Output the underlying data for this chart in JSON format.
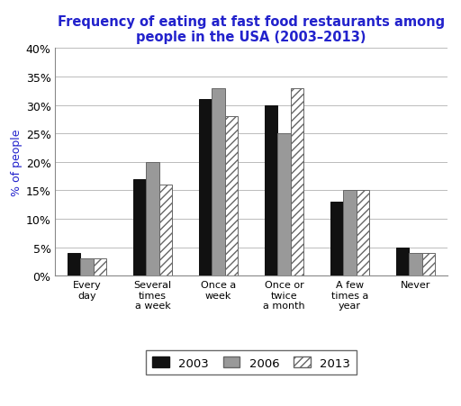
{
  "title": "Frequency of eating at fast food restaurants among\npeople in the USA (2003–2013)",
  "ylabel": "% of people",
  "categories": [
    "Every\nday",
    "Several\ntimes\na week",
    "Once a\nweek",
    "Once or\ntwice\na month",
    "A few\ntimes a\nyear",
    "Never"
  ],
  "series": {
    "2003": [
      4,
      17,
      31,
      30,
      13,
      5
    ],
    "2006": [
      3,
      20,
      33,
      25,
      15,
      4
    ],
    "2013": [
      3,
      16,
      28,
      33,
      15,
      4
    ]
  },
  "ylim": [
    0,
    40
  ],
  "yticks": [
    0,
    5,
    10,
    15,
    20,
    25,
    30,
    35,
    40
  ],
  "title_color": "#2222cc",
  "ylabel_color": "#2222cc",
  "title_fontsize": 10.5,
  "ylabel_fontsize": 9,
  "tick_fontsize": 9,
  "xtick_fontsize": 8,
  "background_color": "#ffffff",
  "grid_color": "#bbbbbb",
  "bar_width": 0.2,
  "group_width": 1.0
}
